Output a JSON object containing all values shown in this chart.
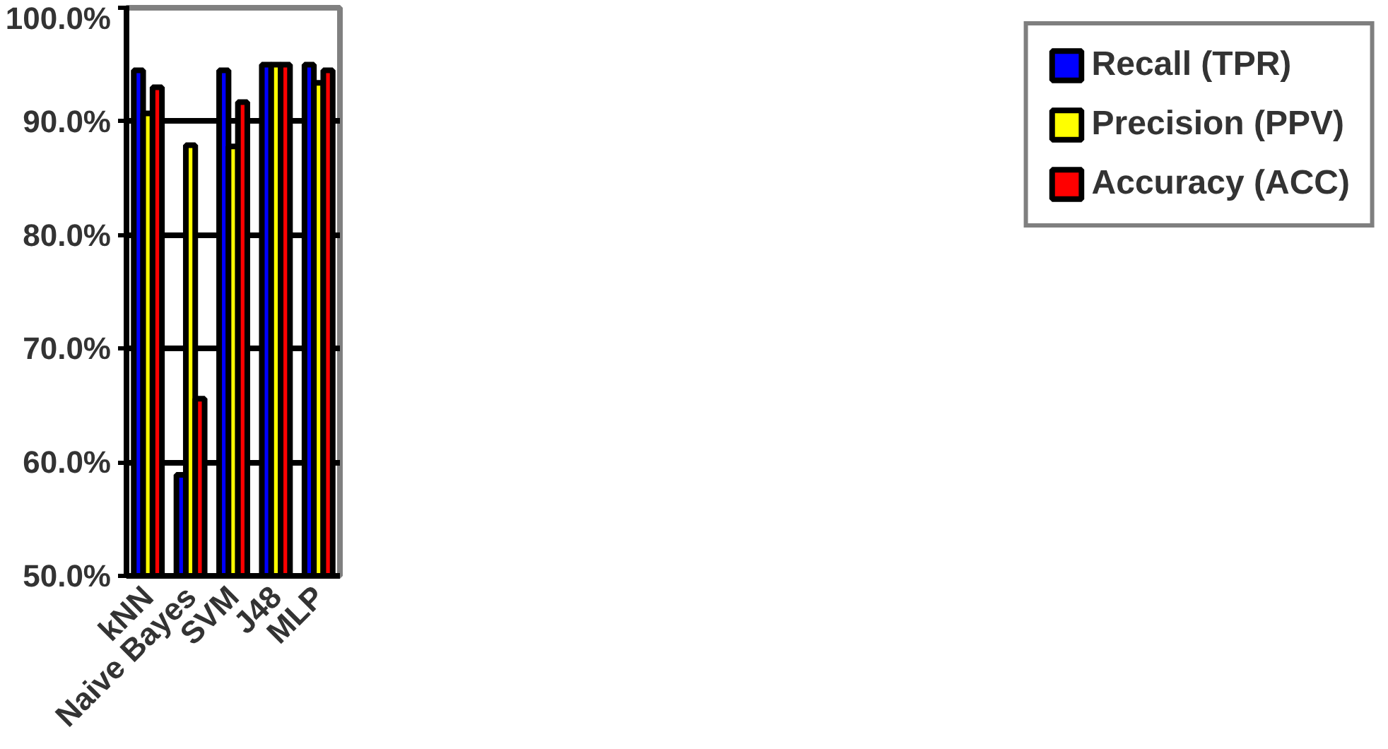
{
  "chart_data": {
    "type": "bar",
    "categories": [
      "kNN",
      "Naive Bayes",
      "SVM",
      "J48",
      "MLP"
    ],
    "series": [
      {
        "name": "Recall (TPR)",
        "color": "#0000ff",
        "values": [
          94.5,
          58.9,
          94.5,
          95.0,
          95.0
        ]
      },
      {
        "name": "Precision (PPV)",
        "color": "#ffff00",
        "values": [
          90.7,
          87.9,
          87.8,
          95.0,
          93.4
        ]
      },
      {
        "name": "Accuracy (ACC)",
        "color": "#ff0000",
        "values": [
          93.0,
          65.6,
          91.7,
          95.0,
          94.5
        ]
      }
    ],
    "ylim": [
      50,
      100
    ],
    "yticks": [
      {
        "value": 50,
        "label": "50.0%"
      },
      {
        "value": 60,
        "label": "60.0%"
      },
      {
        "value": 70,
        "label": "70.0%"
      },
      {
        "value": 80,
        "label": "80.0%"
      },
      {
        "value": 90,
        "label": "90.0%"
      },
      {
        "value": 100,
        "label": "100.0%"
      }
    ],
    "grid": "y",
    "legend": "right"
  }
}
